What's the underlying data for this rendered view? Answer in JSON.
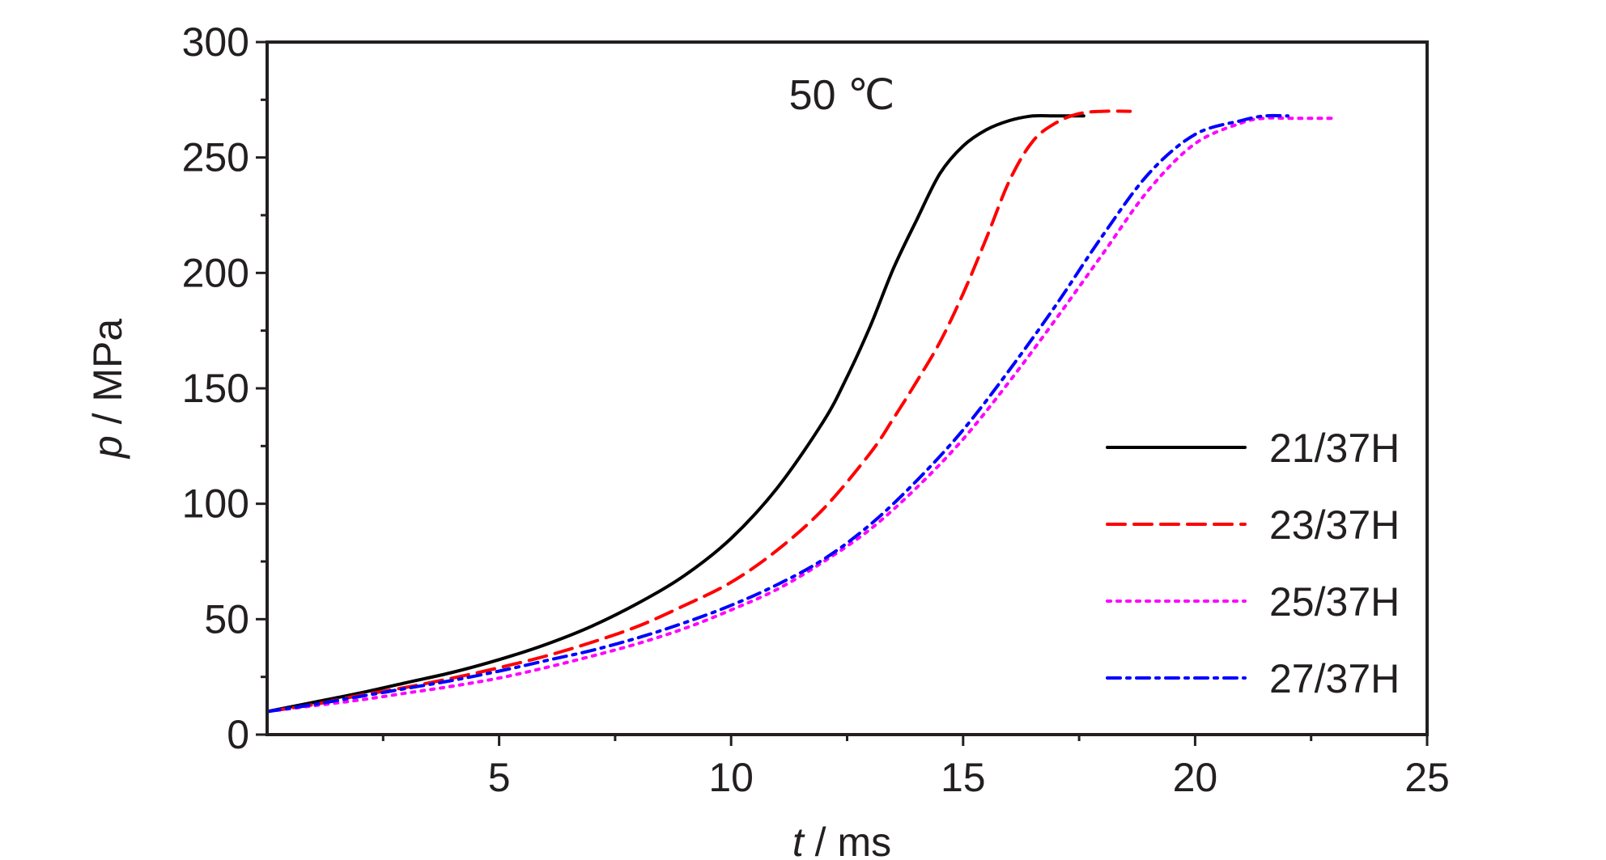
{
  "chart_data": {
    "type": "line",
    "annotation": "50 ℃",
    "xlabel": {
      "italic": "t",
      "rest": " / ms"
    },
    "ylabel": {
      "italic": "p",
      "rest": " / MPa"
    },
    "xlim": [
      0,
      25
    ],
    "ylim": [
      0,
      300
    ],
    "xticks": [
      5,
      10,
      15,
      20,
      25
    ],
    "yticks": [
      0,
      50,
      100,
      150,
      200,
      250,
      300
    ],
    "xminor": [
      2.5,
      7.5,
      12.5,
      17.5,
      22.5
    ],
    "yminor": [
      25,
      75,
      125,
      175,
      225,
      275
    ],
    "grid": false,
    "legend_position": "bottom-right",
    "series": [
      {
        "name": "21/37H",
        "color": "#000000",
        "dash": "solid",
        "x": [
          0,
          1,
          2,
          3,
          4,
          5,
          6,
          7,
          8,
          9,
          10,
          11,
          12,
          12.5,
          13,
          13.5,
          14,
          14.5,
          15,
          15.5,
          16,
          16.5,
          17,
          17.6
        ],
        "y": [
          10,
          14,
          18,
          22.5,
          27,
          32.5,
          39,
          47,
          57,
          69,
          85,
          107,
          136,
          155,
          177,
          202,
          223,
          243,
          255,
          262,
          266,
          268,
          268,
          268
        ]
      },
      {
        "name": "23/37H",
        "color": "#ff0000",
        "dash": "dashed",
        "x": [
          0,
          1,
          2,
          3,
          4,
          5,
          6,
          7,
          8,
          9,
          10,
          11,
          12,
          13,
          13.5,
          14,
          14.5,
          15,
          15.5,
          16,
          16.5,
          17,
          17.5,
          18,
          18.6
        ],
        "y": [
          10,
          13,
          17,
          20.5,
          24.5,
          29,
          34,
          40,
          47,
          56,
          66,
          80,
          98,
          122,
          137,
          153,
          170,
          191,
          215,
          240,
          257,
          265,
          269,
          270,
          270
        ]
      },
      {
        "name": "25/37H",
        "color": "#ff00ff",
        "dash": "dotted",
        "x": [
          0,
          1,
          2,
          3,
          4,
          5,
          6,
          7,
          8,
          9,
          10,
          11,
          12,
          13,
          14,
          15,
          16,
          17,
          18,
          19,
          20,
          21,
          21.5,
          22,
          23
        ],
        "y": [
          10,
          12.5,
          15,
          18,
          21,
          24.5,
          29,
          34,
          39.5,
          46,
          54,
          63,
          75,
          89,
          107,
          128,
          153,
          180,
          208,
          236,
          256,
          265,
          267,
          267,
          267
        ]
      },
      {
        "name": "27/37H",
        "color": "#0000ff",
        "dash": "dashdot",
        "x": [
          0,
          1,
          2,
          3,
          4,
          5,
          6,
          7,
          8,
          9,
          10,
          11,
          12,
          13,
          14,
          15,
          16,
          17,
          18,
          19,
          20,
          21,
          21.5,
          22
        ],
        "y": [
          10,
          13,
          16.5,
          20,
          23.5,
          27.5,
          32,
          36.5,
          42,
          48.5,
          56,
          65,
          76,
          91,
          110,
          132,
          158,
          186,
          216,
          243,
          260,
          266,
          268,
          268
        ]
      }
    ]
  }
}
